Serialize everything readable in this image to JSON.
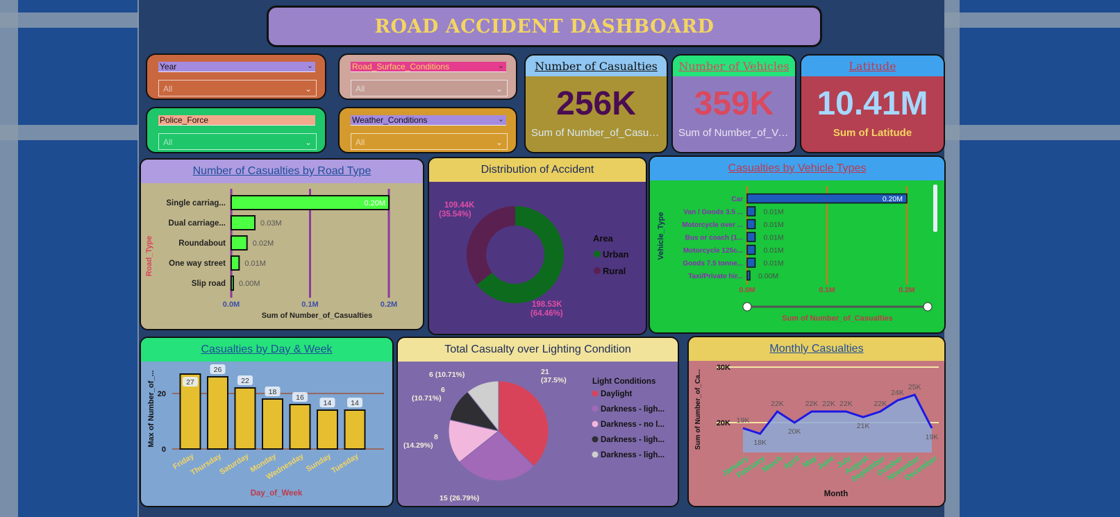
{
  "dashboard": {
    "title": "ROAD ACCIDENT DASHBOARD"
  },
  "slicers": [
    {
      "label": "Year",
      "value": "All",
      "color": "#c9673f"
    },
    {
      "label": "Road_Surface_Conditions",
      "value": "All",
      "color": "#cfa59c"
    },
    {
      "label": "Police_Force",
      "value": "All",
      "color": "#1fc66a"
    },
    {
      "label": "Weather_Conditions",
      "value": "All",
      "color": "#d59a2d"
    }
  ],
  "kpis": [
    {
      "title": "Number of Casualties",
      "value": "256K",
      "subtitle": "Sum of Number_of_Casual...",
      "header_color": "#8fc6f2",
      "body_color": "#a99334",
      "value_color": "#4a0c52",
      "sub_color": "#dbe8f3",
      "title_color": "#111111"
    },
    {
      "title": "Number of Vehicles",
      "value": "359K",
      "subtitle": "Sum of Number_of_Ve...",
      "header_color": "#25e27a",
      "body_color": "#8e7bbf",
      "value_color": "#d9495f",
      "sub_color": "#eae5f2",
      "title_color": "#d9495f"
    },
    {
      "title": "Latitude",
      "value": "10.41M",
      "subtitle": "Sum of Latitude",
      "header_color": "#3fa2ef",
      "body_color": "#b54051",
      "value_color": "#a6d8ff",
      "sub_color": "#f3d562",
      "title_color": "#c0394a"
    }
  ],
  "road_type_chart": {
    "title": "Number of Casualties by Road Type",
    "chart_data": {
      "type": "bar",
      "orientation": "horizontal",
      "categories": [
        "Single carriag...",
        "Dual carriage...",
        "Roundabout",
        "One way street",
        "Slip road"
      ],
      "values": [
        0.2,
        0.03,
        0.02,
        0.01,
        0.0
      ],
      "data_labels": [
        "0.20M",
        "0.03M",
        "0.02M",
        "0.01M",
        "0.00M"
      ],
      "xlabel": "Sum of Number_of_Casualties",
      "ylabel": "Road_Type",
      "xlim": [
        0,
        0.2
      ],
      "ticks": [
        "0.0M",
        "0.1M",
        "0.2M"
      ]
    }
  },
  "distribution_chart": {
    "title": "Distribution of Accident",
    "legend_title": "Area",
    "chart_data": {
      "type": "pie",
      "donut": true,
      "categories": [
        "Urban",
        "Rural"
      ],
      "values": [
        198.53,
        109.44
      ],
      "labels": [
        [
          "198.53K",
          "(64.46%)"
        ],
        [
          "109.44K",
          "(35.54%)"
        ]
      ],
      "colors": [
        "#0d6b1d",
        "#5a2050"
      ]
    }
  },
  "vehicle_chart": {
    "title": "Casualties by Vehicle Types",
    "chart_data": {
      "type": "bar",
      "orientation": "horizontal",
      "categories": [
        "Car",
        "Van / Goods 3.5 ...",
        "Motorcycle over ...",
        "Bus or coach (1...",
        "Motorcycle 125c...",
        "Goods 7.5 tonne...",
        "Taxi/Private hir..."
      ],
      "values": [
        0.2,
        0.01,
        0.01,
        0.01,
        0.01,
        0.01,
        0.0
      ],
      "data_labels": [
        "0.20M",
        "0.01M",
        "0.01M",
        "0.01M",
        "0.01M",
        "0.01M",
        "0.00M"
      ],
      "xlabel": "Sum of Number_of_Casualties",
      "ylabel": "Vehicle_Type",
      "xlim": [
        0,
        0.2
      ],
      "ticks": [
        "0.0M",
        "0.1M",
        "0.2M"
      ]
    }
  },
  "day_chart": {
    "title": "Casualties by Day & Week",
    "chart_data": {
      "type": "bar",
      "categories": [
        "Friday",
        "Thursday",
        "Saturday",
        "Monday",
        "Wednesday",
        "Sunday",
        "Tuesday"
      ],
      "values": [
        27,
        26,
        22,
        18,
        16,
        14,
        14
      ],
      "xlabel": "Day_of_Week",
      "ylabel": "Max of Number_of_...",
      "ylim": [
        0,
        30
      ],
      "ticks": [
        "0",
        "20"
      ]
    }
  },
  "lighting_chart": {
    "title": "Total Casualty over Lighting Condition",
    "legend_title": "Light Conditions",
    "chart_data": {
      "type": "pie",
      "categories": [
        "Daylight",
        "Darkness - ligh...",
        "Darkness - no l...",
        "Darkness - ligh...",
        "Darkness - ligh..."
      ],
      "values": [
        21,
        15,
        8,
        6,
        6
      ],
      "labels": [
        [
          "21",
          "(37.5%)"
        ],
        [
          "15 (26.79%)"
        ],
        [
          "8",
          "(14.29%)"
        ],
        [
          "6",
          "(10.71%)"
        ],
        [
          "6 (10.71%)"
        ]
      ],
      "colors": [
        "#d9435a",
        "#a169b8",
        "#f2b7dc",
        "#2e2e33",
        "#cfcfcf"
      ]
    }
  },
  "monthly_chart": {
    "title": "Monthly Casualties",
    "chart_data": {
      "type": "area",
      "categories": [
        "January",
        "February",
        "March",
        "April",
        "May",
        "June",
        "July",
        "August",
        "September",
        "October",
        "November",
        "December"
      ],
      "values": [
        19,
        18,
        22,
        20,
        22,
        22,
        22,
        21,
        22,
        24,
        25,
        19
      ],
      "data_labels": [
        "19K",
        "18K",
        "22K",
        "20K",
        "22K",
        "22K",
        "22K",
        "21K",
        "22K",
        "24K",
        "25K",
        "19K"
      ],
      "xlabel": "Month",
      "ylabel": "Sum of Number_of_Ca...",
      "ylim": [
        15,
        30
      ],
      "ticks": [
        "20K",
        "30K"
      ]
    }
  }
}
